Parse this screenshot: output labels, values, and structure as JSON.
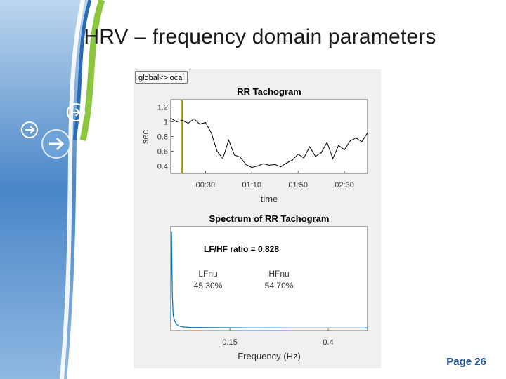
{
  "slide": {
    "title": "HRV – frequency domain parameters",
    "page": "Page 26"
  },
  "figure": {
    "toggle_label": "global<>local"
  },
  "colors": {
    "tachogram_line": "#000000",
    "spectrum_line": "#0072bd",
    "marker_line": "#9a9a00",
    "slide_accent_blue": "#2a6bb5",
    "slide_accent_green": "#8cc63f"
  },
  "chart_data": [
    {
      "type": "line",
      "title": "RR Tachogram",
      "xlabel": "time",
      "ylabel": "sec",
      "xlim": [
        "00:00",
        "02:50"
      ],
      "ylim": [
        0.3,
        1.3
      ],
      "xticks": [
        "00:30",
        "01:10",
        "01:50",
        "02:30"
      ],
      "yticks": [
        "1.2",
        "1",
        "0.8",
        "0.6",
        "0.4"
      ],
      "x": [
        "00:00",
        "00:05",
        "00:10",
        "00:15",
        "00:20",
        "00:25",
        "00:30",
        "00:35",
        "00:40",
        "00:45",
        "00:50",
        "00:55",
        "01:00",
        "01:05",
        "01:10",
        "01:15",
        "01:20",
        "01:25",
        "01:30",
        "01:35",
        "01:40",
        "01:45",
        "01:50",
        "01:55",
        "02:00",
        "02:05",
        "02:10",
        "02:15",
        "02:20",
        "02:25",
        "02:30",
        "02:35",
        "02:40",
        "02:45",
        "02:50"
      ],
      "series": [
        {
          "values": [
            1.05,
            1.0,
            1.02,
            0.98,
            1.04,
            0.97,
            0.99,
            0.85,
            0.6,
            0.5,
            0.75,
            0.55,
            0.52,
            0.42,
            0.38,
            0.4,
            0.43,
            0.41,
            0.42,
            0.39,
            0.44,
            0.48,
            0.56,
            0.51,
            0.66,
            0.53,
            0.58,
            0.72,
            0.5,
            0.68,
            0.62,
            0.74,
            0.78,
            0.73,
            0.85
          ]
        }
      ],
      "markers": [
        {
          "x": "00:09"
        },
        {
          "x": "00:10"
        }
      ]
    },
    {
      "type": "line",
      "title": "Spectrum of RR Tachogram",
      "xlabel": "Frequency (Hz)",
      "xlim": [
        0,
        0.5
      ],
      "xticks": [
        "0.15",
        "0.4"
      ],
      "tick_values": [
        0.15,
        0.4
      ],
      "annotations": [
        {
          "text": "LF/HF ratio = 0.828",
          "bold": true
        },
        {
          "text": "LFnu"
        },
        {
          "text": "45.30%"
        },
        {
          "text": "HFnu"
        },
        {
          "text": "54.70%"
        }
      ],
      "x": [
        0.0,
        0.002,
        0.004,
        0.006,
        0.01,
        0.015,
        0.02,
        0.03,
        0.05,
        0.1,
        0.15,
        0.2,
        0.3,
        0.4,
        0.5
      ],
      "series": [
        {
          "values": [
            0.1,
            0.95,
            0.35,
            0.15,
            0.09,
            0.06,
            0.045,
            0.035,
            0.03,
            0.028,
            0.027,
            0.026,
            0.025,
            0.025,
            0.025
          ]
        }
      ]
    }
  ]
}
